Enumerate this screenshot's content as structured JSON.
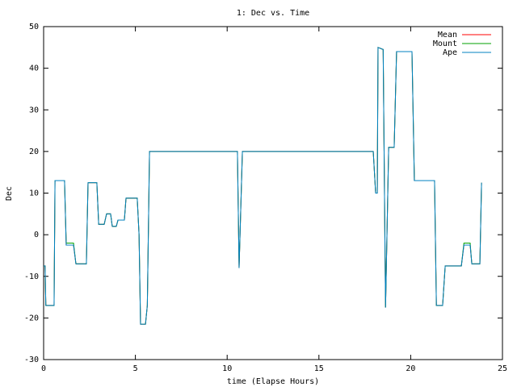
{
  "chart_data": {
    "type": "line",
    "title": "1: Dec vs. Time",
    "x_label": "time (Elapse Hours)",
    "y_label": "Dec",
    "x": [
      0,
      0.08,
      0.12,
      0.57,
      0.62,
      1.14,
      1.23,
      1.63,
      1.76,
      2.33,
      2.42,
      2.9,
      3.0,
      3.3,
      3.43,
      3.65,
      3.74,
      3.96,
      4.05,
      4.4,
      4.49,
      5.1,
      5.2,
      5.28,
      5.55,
      5.65,
      5.77,
      10.56,
      10.65,
      10.83,
      17.96,
      18.09,
      18.18,
      18.22,
      18.5,
      18.63,
      18.8,
      19.1,
      19.23,
      20.07,
      20.2,
      21.3,
      21.4,
      21.74,
      21.88,
      22.76,
      22.9,
      23.24,
      23.33,
      23.77,
      23.86
    ],
    "series": [
      {
        "name": "Mean",
        "color": "#ff0000",
        "values": [
          -7.5,
          -7.5,
          -17,
          -17,
          13,
          13,
          -2.5,
          -2.5,
          -7,
          -7,
          12.5,
          12.5,
          2.5,
          2.5,
          5,
          5,
          2,
          2,
          3.5,
          3.5,
          8.8,
          8.8,
          0,
          -21.5,
          -21.5,
          -17,
          20,
          20,
          -8,
          20,
          20,
          10,
          10,
          45,
          44.5,
          -17.5,
          21,
          21,
          44,
          44,
          13,
          13,
          -17,
          -17,
          -7.5,
          -7.5,
          -2.5,
          -2.5,
          -7,
          -7,
          12.5
        ]
      },
      {
        "name": "Mount",
        "color": "#00a000",
        "values": [
          -7.5,
          -7.5,
          -17,
          -17,
          13,
          13,
          -2,
          -2,
          -7,
          -7,
          12.5,
          12.5,
          2.5,
          2.5,
          5,
          5,
          2,
          2,
          3.5,
          3.5,
          8.8,
          8.8,
          0,
          -21.5,
          -21.5,
          -17,
          20,
          20,
          -8,
          20,
          20,
          10,
          10,
          45,
          44.5,
          -17.5,
          21,
          21,
          44,
          44,
          13,
          13,
          -17,
          -17,
          -7.5,
          -7.5,
          -2,
          -2,
          -7,
          -7,
          12.5
        ]
      },
      {
        "name": "Ape",
        "color": "#0080c0",
        "values": [
          -7.5,
          -7.5,
          -17,
          -17,
          13,
          13,
          -2.5,
          -2.5,
          -7,
          -7,
          12.5,
          12.5,
          2.5,
          2.5,
          5,
          5,
          2,
          2,
          3.5,
          3.5,
          8.8,
          8.8,
          0,
          -21.5,
          -21.5,
          -17,
          20,
          20,
          -8,
          20,
          20,
          10,
          10,
          45,
          44.5,
          -17.5,
          21,
          21,
          44,
          44,
          13,
          13,
          -17,
          -17,
          -7.5,
          -7.5,
          -2.5,
          -2.5,
          -7,
          -7,
          12.5
        ]
      }
    ],
    "xlim": [
      0,
      25
    ],
    "xticks": [
      0,
      5,
      10,
      15,
      20,
      25
    ],
    "ylim": [
      -30,
      50
    ],
    "yticks": [
      -30,
      -20,
      -10,
      0,
      10,
      20,
      30,
      40,
      50
    ],
    "grid": false,
    "legend": "top-right"
  }
}
